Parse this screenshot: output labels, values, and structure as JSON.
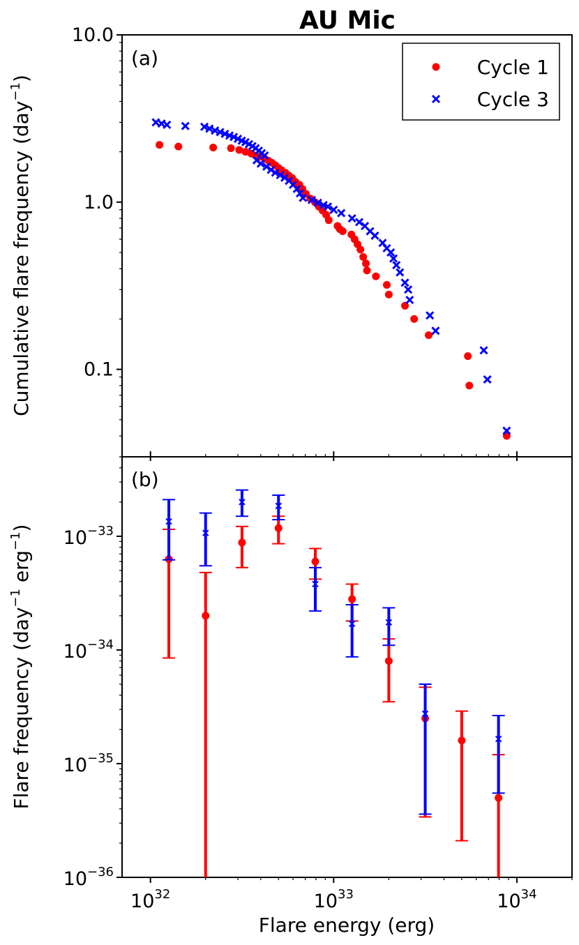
{
  "figure": {
    "title": "AU Mic",
    "xlabel": "Flare energy (erg)"
  },
  "chart_data": [
    {
      "type": "scatter",
      "panel_label": "(a)",
      "ylabel": "Cumulative flare frequency (day",
      "ylabel_sup": "−1",
      "ylabel_close": ")",
      "xscale": "log",
      "yscale": "log",
      "xlim": [
        7e+31,
        2e+34
      ],
      "ylim": [
        0.03,
        10.0
      ],
      "yticks": [
        0.1,
        1.0,
        10.0
      ],
      "ytick_labels": [
        "0.1",
        "1.0",
        "10.0"
      ],
      "legend": {
        "placement": "top-right",
        "entries": [
          {
            "label": "Cycle 1",
            "color": "#ff0000",
            "marker": "circle"
          },
          {
            "label": "Cycle 3",
            "color": "#0000ff",
            "marker": "x"
          }
        ]
      },
      "series": [
        {
          "name": "Cycle 1",
          "color": "#ff0000",
          "marker": "circle",
          "points": [
            [
              1.12e+32,
              2.2
            ],
            [
              1.42e+32,
              2.15
            ],
            [
              2.2e+32,
              2.12
            ],
            [
              2.75e+32,
              2.1
            ],
            [
              3.05e+32,
              2.05
            ],
            [
              3.3e+32,
              2.0
            ],
            [
              3.55e+32,
              1.95
            ],
            [
              3.75e+32,
              1.9
            ],
            [
              3.95e+32,
              1.87
            ],
            [
              4.2e+32,
              1.82
            ],
            [
              4.4e+32,
              1.77
            ],
            [
              4.6e+32,
              1.72
            ],
            [
              4.8e+32,
              1.66
            ],
            [
              5e+32,
              1.6
            ],
            [
              5.2e+32,
              1.55
            ],
            [
              5.45e+32,
              1.5
            ],
            [
              5.7e+32,
              1.44
            ],
            [
              5.95e+32,
              1.39
            ],
            [
              6.2e+32,
              1.32
            ],
            [
              6.5e+32,
              1.27
            ],
            [
              6.75e+32,
              1.2
            ],
            [
              7.05e+32,
              1.12
            ],
            [
              7.45e+32,
              1.05
            ],
            [
              7.9e+32,
              1.0
            ],
            [
              8.3e+32,
              0.94
            ],
            [
              8.7e+32,
              0.89
            ],
            [
              9.1e+32,
              0.84
            ],
            [
              9.4e+32,
              0.78
            ],
            [
              1.05e+33,
              0.72
            ],
            [
              1.08e+33,
              0.69
            ],
            [
              1.12e+33,
              0.67
            ],
            [
              1.25e+33,
              0.64
            ],
            [
              1.3e+33,
              0.6
            ],
            [
              1.35e+33,
              0.56
            ],
            [
              1.4e+33,
              0.52
            ],
            [
              1.45e+33,
              0.47
            ],
            [
              1.5e+33,
              0.43
            ],
            [
              1.52e+33,
              0.39
            ],
            [
              1.7e+33,
              0.36
            ],
            [
              1.95e+33,
              0.32
            ],
            [
              2e+33,
              0.28
            ],
            [
              2.45e+33,
              0.24
            ],
            [
              2.75e+33,
              0.2
            ],
            [
              3.3e+33,
              0.16
            ],
            [
              5.4e+33,
              0.12
            ],
            [
              5.5e+33,
              0.08
            ],
            [
              8.8e+33,
              0.04
            ]
          ]
        },
        {
          "name": "Cycle 3",
          "color": "#0000ff",
          "marker": "x",
          "points": [
            [
              1.07e+32,
              3.0
            ],
            [
              1.15e+32,
              2.95
            ],
            [
              1.23e+32,
              2.9
            ],
            [
              1.55e+32,
              2.85
            ],
            [
              1.97e+32,
              2.82
            ],
            [
              2.1e+32,
              2.75
            ],
            [
              2.25e+32,
              2.68
            ],
            [
              2.4e+32,
              2.62
            ],
            [
              2.55e+32,
              2.56
            ],
            [
              2.7e+32,
              2.5
            ],
            [
              2.85e+32,
              2.45
            ],
            [
              3e+32,
              2.39
            ],
            [
              3.15e+32,
              2.33
            ],
            [
              3.3e+32,
              2.28
            ],
            [
              3.45e+32,
              2.22
            ],
            [
              3.6e+32,
              2.16
            ],
            [
              3.75e+32,
              2.1
            ],
            [
              3.9e+32,
              2.03
            ],
            [
              4.05e+32,
              1.96
            ],
            [
              4.2e+32,
              1.9
            ],
            [
              3.8e+32,
              1.78
            ],
            [
              4e+32,
              1.7
            ],
            [
              4.3e+32,
              1.63
            ],
            [
              4.55e+32,
              1.56
            ],
            [
              4.8e+32,
              1.5
            ],
            [
              5.1e+32,
              1.45
            ],
            [
              5.4e+32,
              1.4
            ],
            [
              5.7e+32,
              1.34
            ],
            [
              6e+32,
              1.27
            ],
            [
              6.3e+32,
              1.2
            ],
            [
              6.55e+32,
              1.13
            ],
            [
              6.8e+32,
              1.06
            ],
            [
              7.6e+32,
              1.03
            ],
            [
              8.2e+32,
              0.99
            ],
            [
              8.8e+32,
              0.96
            ],
            [
              9.3e+32,
              0.94
            ],
            [
              1e+33,
              0.9
            ],
            [
              1.1e+33,
              0.86
            ],
            [
              1.26e+33,
              0.8
            ],
            [
              1.38e+33,
              0.76
            ],
            [
              1.48e+33,
              0.72
            ],
            [
              1.58e+33,
              0.67
            ],
            [
              1.68e+33,
              0.63
            ],
            [
              1.85e+33,
              0.57
            ],
            [
              1.95e+33,
              0.53
            ],
            [
              2.05e+33,
              0.5
            ],
            [
              2.12e+33,
              0.46
            ],
            [
              2.2e+33,
              0.42
            ],
            [
              2.3e+33,
              0.38
            ],
            [
              2.45e+33,
              0.33
            ],
            [
              2.55e+33,
              0.3
            ],
            [
              2.6e+33,
              0.26
            ],
            [
              3.35e+33,
              0.21
            ],
            [
              3.6e+33,
              0.17
            ],
            [
              6.6e+33,
              0.13
            ],
            [
              6.9e+33,
              0.087
            ],
            [
              8.8e+33,
              0.043
            ]
          ]
        }
      ]
    },
    {
      "type": "scatter_errorbar",
      "panel_label": "(b)",
      "ylabel": "Flare frequency (day",
      "ylabel_sup1": "−1",
      "ylabel_mid": " erg",
      "ylabel_sup2": "−1",
      "ylabel_close": ")",
      "xscale": "log",
      "yscale": "log",
      "xlim": [
        7e+31,
        2e+34
      ],
      "ylim": [
        1e-36,
        5e-33
      ],
      "xticks": [
        {
          "value": 1e+32,
          "base": "10",
          "exp": "32"
        },
        {
          "value": 1e+33,
          "base": "10",
          "exp": "33"
        },
        {
          "value": 1e+34,
          "base": "10",
          "exp": "34"
        }
      ],
      "yticks": [
        {
          "value": 1e-36,
          "base": "10",
          "exp": "−36"
        },
        {
          "value": 1e-35,
          "base": "10",
          "exp": "−35"
        },
        {
          "value": 1e-34,
          "base": "10",
          "exp": "−34"
        },
        {
          "value": 1e-33,
          "base": "10",
          "exp": "−33"
        }
      ],
      "series": [
        {
          "name": "Cycle 1",
          "color": "#ff0000",
          "marker": "circle",
          "points": [
            {
              "x": 1.26e+32,
              "y": 6.3e-34,
              "lo": 8.5e-35,
              "hi": 1.15e-33
            },
            {
              "x": 2e+32,
              "y": 2e-34,
              "lo": 1e-36,
              "hi": 4.8e-34
            },
            {
              "x": 3.16e+32,
              "y": 8.8e-34,
              "lo": 5.3e-34,
              "hi": 1.22e-33
            },
            {
              "x": 5e+32,
              "y": 1.18e-33,
              "lo": 8.6e-34,
              "hi": 1.5e-33
            },
            {
              "x": 7.94e+32,
              "y": 6e-34,
              "lo": 4.2e-34,
              "hi": 7.8e-34
            },
            {
              "x": 1.26e+33,
              "y": 2.8e-34,
              "lo": 1.8e-34,
              "hi": 3.8e-34
            },
            {
              "x": 2e+33,
              "y": 8e-35,
              "lo": 3.5e-35,
              "hi": 1.25e-34
            },
            {
              "x": 3.16e+33,
              "y": 2.5e-35,
              "lo": 3.4e-36,
              "hi": 4.7e-35
            },
            {
              "x": 5e+33,
              "y": 1.6e-35,
              "lo": 2.1e-36,
              "hi": 2.9e-35
            },
            {
              "x": 7.94e+33,
              "y": 5e-36,
              "lo": 1e-36,
              "hi": 1.2e-35
            }
          ]
        },
        {
          "name": "Cycle 3",
          "color": "#0000ff",
          "marker": "x",
          "points": [
            {
              "x": 1.26e+32,
              "y": 1.35e-33,
              "lo": 6.2e-34,
              "hi": 2.1e-33
            },
            {
              "x": 2e+32,
              "y": 1.07e-33,
              "lo": 5.5e-34,
              "hi": 1.6e-33
            },
            {
              "x": 3.16e+32,
              "y": 2e-33,
              "lo": 1.5e-33,
              "hi": 2.55e-33
            },
            {
              "x": 5e+32,
              "y": 1.85e-33,
              "lo": 1.4e-33,
              "hi": 2.3e-33
            },
            {
              "x": 7.94e+32,
              "y": 3.8e-34,
              "lo": 2.2e-34,
              "hi": 5.3e-34
            },
            {
              "x": 1.26e+33,
              "y": 1.7e-34,
              "lo": 8.7e-35,
              "hi": 2.5e-34
            },
            {
              "x": 2e+33,
              "y": 1.75e-34,
              "lo": 1.1e-34,
              "hi": 2.35e-34
            },
            {
              "x": 3.16e+33,
              "y": 2.75e-35,
              "lo": 3.6e-36,
              "hi": 5e-35
            },
            {
              "x": 7.94e+33,
              "y": 1.65e-35,
              "lo": 5.5e-36,
              "hi": 2.65e-35
            }
          ]
        }
      ]
    }
  ]
}
